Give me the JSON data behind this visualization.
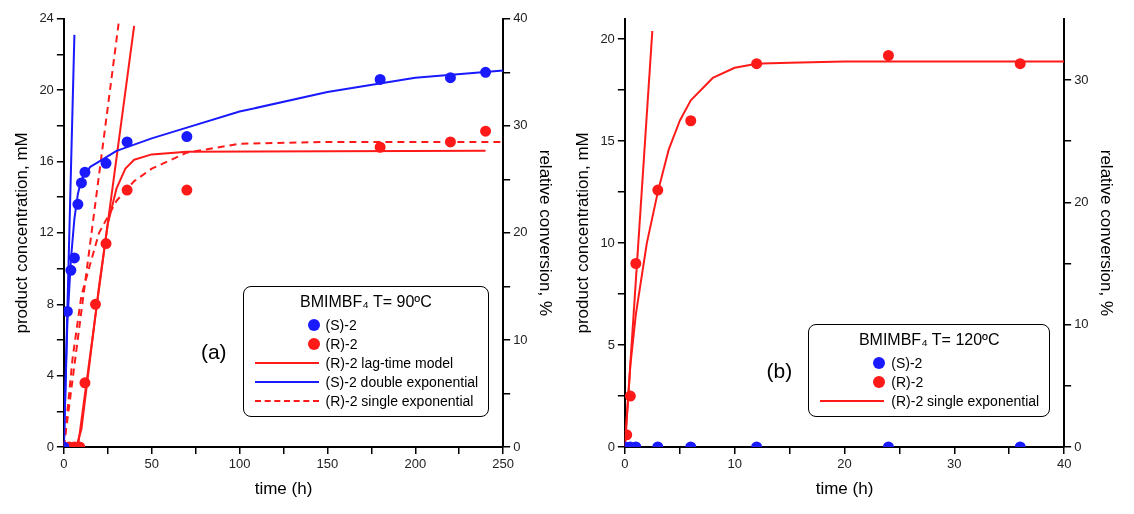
{
  "chart_data": [
    {
      "type": "scatter",
      "xlabel": "time (h)",
      "ylabel": "product concentration, mM",
      "y2label": "relative conversion, %",
      "legend_title": "BMIMBF₄ T= 90ºC",
      "legend": "bottom right",
      "grid": false,
      "annotations": [
        "(a)"
      ],
      "xlim": [
        0,
        250
      ],
      "xticks": [
        0,
        {
          "value": 25,
          "label": null
        },
        50,
        {
          "value": 75,
          "label": null
        },
        100,
        {
          "value": 125,
          "label": null
        },
        150,
        {
          "value": 175,
          "label": null
        },
        200,
        {
          "value": 225,
          "label": null
        },
        250
      ],
      "ylim": [
        0,
        24
      ],
      "yticks": [
        0,
        {
          "value": 2,
          "label": null
        },
        4,
        {
          "value": 6,
          "label": null
        },
        8,
        {
          "value": 10,
          "label": null
        },
        12,
        {
          "value": 14,
          "label": null
        },
        16,
        {
          "value": 18,
          "label": null
        },
        20,
        {
          "value": 22,
          "label": null
        },
        24
      ],
      "y2lim": [
        0,
        40
      ],
      "y2ticks": [
        0,
        {
          "value": 5,
          "label": null
        },
        10,
        {
          "value": 15,
          "label": null
        },
        20,
        {
          "value": 25,
          "label": null
        },
        30,
        {
          "value": 35,
          "label": null
        },
        40
      ],
      "series": [
        {
          "name": "(S)-2",
          "type": "scatter",
          "marker": "circle",
          "color": "#1a1aff",
          "x": [
            0,
            2,
            4,
            6,
            8,
            10,
            12,
            24,
            36,
            70,
            180,
            220,
            240
          ],
          "values": [
            0,
            7.6,
            9.9,
            10.6,
            13.6,
            14.8,
            15.4,
            15.9,
            17.1,
            17.4,
            20.6,
            20.7,
            21.0
          ]
        },
        {
          "name": "(R)-2",
          "type": "scatter",
          "marker": "circle",
          "color": "#ff1a1a",
          "x": [
            0,
            3,
            6,
            9,
            12,
            18,
            24,
            36,
            70,
            180,
            220,
            240
          ],
          "values": [
            0,
            0,
            0,
            0,
            3.6,
            8.0,
            11.4,
            14.4,
            14.4,
            16.8,
            17.1,
            17.7
          ]
        },
        {
          "name": "(R)-2 lag-time model",
          "type": "line",
          "marker": "none",
          "line_style": "solid",
          "color": "#ff1a1a",
          "x": [
            0,
            7,
            10,
            15,
            20,
            25,
            30,
            35,
            40,
            50,
            70,
            240
          ],
          "values": [
            0,
            0,
            1,
            5,
            9,
            12.5,
            14.5,
            15.6,
            16.1,
            16.4,
            16.55,
            16.6
          ]
        },
        {
          "name": "(S)-2 double exponential",
          "type": "line",
          "marker": "none",
          "line_style": "solid",
          "color": "#1a1aff",
          "x": [
            0,
            2,
            4,
            6,
            8,
            10,
            15,
            20,
            30,
            50,
            70,
            100,
            150,
            200,
            250
          ],
          "values": [
            0,
            7,
            10.5,
            12.8,
            14.2,
            15,
            15.7,
            16,
            16.6,
            17.3,
            17.9,
            18.8,
            19.9,
            20.7,
            21.1
          ]
        },
        {
          "name": "(R)-2 single exponential",
          "type": "line",
          "marker": "none",
          "line_style": "dashed",
          "color": "#ff1a1a",
          "x": [
            0,
            5,
            10,
            20,
            30,
            40,
            50,
            70,
            100,
            150,
            250
          ],
          "values": [
            0,
            5,
            8.5,
            12,
            13.8,
            14.9,
            15.6,
            16.5,
            17,
            17.1,
            17.1
          ]
        },
        {
          "type": "line",
          "marker": "none",
          "line_style": "solid",
          "color": "#1a1aff",
          "x": [
            0,
            6
          ],
          "values": [
            0,
            23.1
          ]
        },
        {
          "type": "line",
          "marker": "none",
          "line_style": "dashed",
          "color": "#ff1a1a",
          "x": [
            0,
            31.5
          ],
          "values": [
            0,
            24
          ]
        },
        {
          "type": "line",
          "marker": "none",
          "line_style": "solid",
          "color": "#ff1a1a",
          "x": [
            8,
            40
          ],
          "values": [
            0,
            23.6
          ]
        }
      ]
    },
    {
      "type": "scatter",
      "xlabel": "time (h)",
      "ylabel": "product concentration, mM",
      "y2label": "relative conversion, %",
      "legend_title": "BMIMBF₄ T= 120ºC",
      "legend": "bottom right",
      "grid": false,
      "annotations": [
        "(b)"
      ],
      "xlim": [
        0,
        40
      ],
      "xticks": [
        0,
        {
          "value": 5,
          "label": null
        },
        10,
        {
          "value": 15,
          "label": null
        },
        20,
        {
          "value": 25,
          "label": null
        },
        30,
        {
          "value": 35,
          "label": null
        },
        40
      ],
      "ylim": [
        0,
        21
      ],
      "yticks": [
        0,
        {
          "value": 2.5,
          "label": null
        },
        5,
        {
          "value": 7.5,
          "label": null
        },
        10,
        {
          "value": 12.5,
          "label": null
        },
        15,
        {
          "value": 17.5,
          "label": null
        },
        20
      ],
      "y2lim": [
        0,
        35
      ],
      "y2ticks": [
        0,
        {
          "value": 5,
          "label": null
        },
        10,
        {
          "value": 15,
          "label": null
        },
        20,
        {
          "value": 25,
          "label": null
        },
        30
      ],
      "series": [
        {
          "name": "(S)-2",
          "type": "scatter",
          "marker": "circle",
          "color": "#1a1aff",
          "x": [
            0,
            0.5,
            1,
            3,
            6,
            12,
            24,
            36
          ],
          "values": [
            0,
            0,
            0,
            0,
            0,
            0,
            0,
            0
          ]
        },
        {
          "name": "(R)-2",
          "type": "scatter",
          "marker": "circle",
          "color": "#ff1a1a",
          "x": [
            0,
            0.17,
            0.5,
            1,
            3,
            6,
            12,
            24,
            36
          ],
          "values": [
            0,
            0.6,
            2.5,
            9,
            12.6,
            16,
            18.8,
            19.2,
            18.8
          ]
        },
        {
          "name": "(R)-2 single exponential",
          "type": "line",
          "marker": "none",
          "line_style": "solid",
          "color": "#ff1a1a",
          "x": [
            0,
            0.5,
            1,
            2,
            3,
            4,
            5,
            6,
            8,
            10,
            12,
            15,
            20,
            40
          ],
          "values": [
            0,
            4,
            6.5,
            10,
            12.5,
            14.6,
            16,
            17,
            18.1,
            18.6,
            18.8,
            18.85,
            18.9,
            18.9
          ]
        },
        {
          "type": "line",
          "marker": "none",
          "line_style": "solid",
          "color": "#ff1a1a",
          "x": [
            0,
            2.5
          ],
          "values": [
            0,
            20.4
          ]
        }
      ]
    }
  ]
}
